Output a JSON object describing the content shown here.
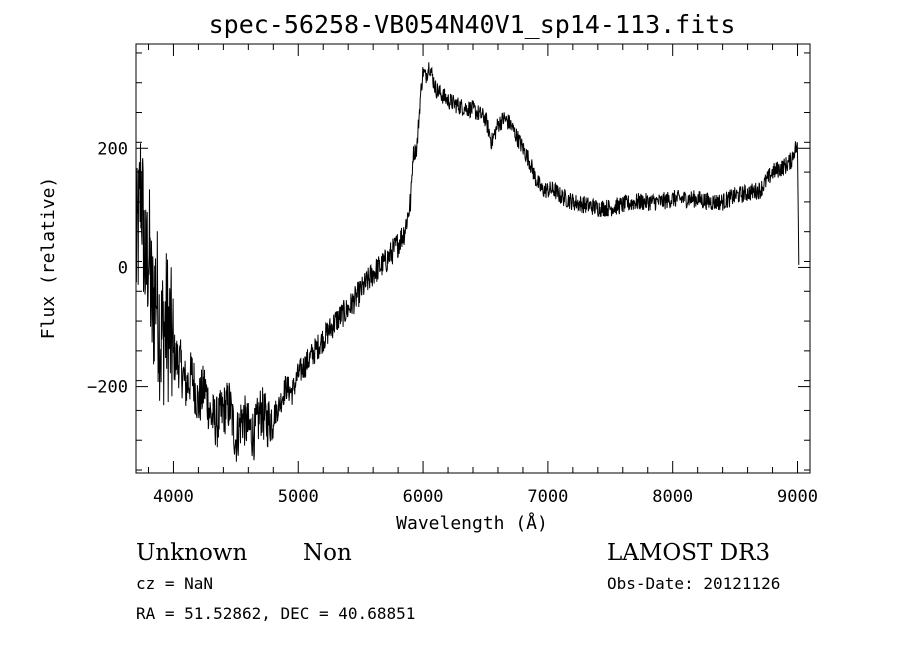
{
  "chart_data": {
    "type": "line",
    "title": "spec-56258-VB054N40V1_sp14-113.fits",
    "xlabel": "Wavelength (Å)",
    "ylabel": "Flux (relative)",
    "xlim": [
      3700,
      9100
    ],
    "ylim": [
      -345,
      375
    ],
    "x_ticks": [
      4000,
      5000,
      6000,
      7000,
      8000,
      9000
    ],
    "y_ticks": [
      -200,
      0,
      200
    ],
    "x_ticks_labels": [
      "4000",
      "5000",
      "6000",
      "7000",
      "8000",
      "9000"
    ],
    "y_ticks_labels": [
      "−200",
      "0",
      "200"
    ],
    "grid": false,
    "series": [
      {
        "x": [
          3700,
          3720,
          3740,
          3760,
          3780,
          3800,
          3830,
          3860,
          3900,
          3950,
          4000,
          4050,
          4100,
          4150,
          4200,
          4250,
          4300,
          4350,
          4400,
          4450,
          4500,
          4550,
          4600,
          4650,
          4700,
          4750,
          4800,
          4850,
          4900,
          4950,
          5000,
          5100,
          5200,
          5300,
          5400,
          5500,
          5600,
          5700,
          5800,
          5850,
          5900,
          5920,
          5950,
          5980,
          6000,
          6020,
          6050,
          6100,
          6150,
          6200,
          6300,
          6400,
          6500,
          6550,
          6600,
          6650,
          6700,
          6750,
          6800,
          6850,
          6900,
          6950,
          7000,
          7050,
          7100,
          7200,
          7300,
          7400,
          7500,
          7600,
          7700,
          7800,
          7900,
          8000,
          8100,
          8200,
          8300,
          8400,
          8500,
          8600,
          8700,
          8800,
          8900,
          8950,
          8980,
          9000,
          9010
        ],
        "y": [
          20,
          60,
          150,
          60,
          -20,
          40,
          -80,
          -30,
          -120,
          -90,
          -150,
          -160,
          -200,
          -180,
          -230,
          -200,
          -250,
          -260,
          -240,
          -230,
          -290,
          -250,
          -270,
          -280,
          -240,
          -260,
          -250,
          -230,
          -200,
          -210,
          -180,
          -150,
          -120,
          -90,
          -70,
          -40,
          -10,
          10,
          40,
          60,
          110,
          190,
          200,
          290,
          330,
          320,
          340,
          300,
          290,
          280,
          270,
          265,
          250,
          210,
          240,
          250,
          240,
          220,
          200,
          180,
          150,
          130,
          130,
          130,
          120,
          110,
          105,
          100,
          100,
          105,
          110,
          110,
          110,
          115,
          115,
          115,
          110,
          110,
          120,
          125,
          130,
          160,
          170,
          180,
          200,
          200,
          10
        ]
      }
    ]
  },
  "footer": {
    "object_class": "Unknown",
    "object_subclass": "Non",
    "survey": "LAMOST DR3",
    "cz": "cz = NaN",
    "obs_date": "Obs-Date: 20121126",
    "coords": "RA =  51.52862, DEC =  40.68851"
  }
}
